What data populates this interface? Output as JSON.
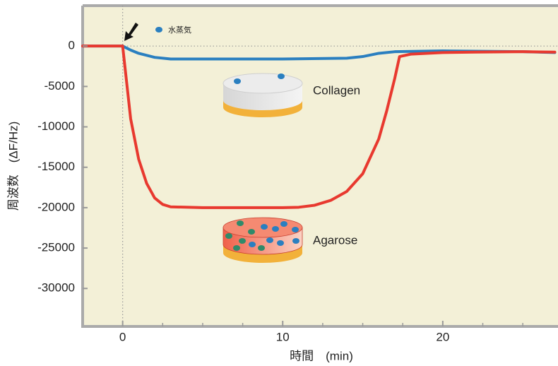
{
  "chart_data": {
    "type": "line",
    "x_label": "時間　(min)",
    "y_label": "周波数　(ΔF/Hz)",
    "annotation": "水蒸気",
    "xlim": [
      -2.5,
      27.2
    ],
    "ylim": [
      -34700,
      5000
    ],
    "xticks": [
      0,
      10,
      20
    ],
    "xminor_ticks": [
      2.5,
      5,
      7.5,
      12.5,
      15,
      17.5,
      22.5,
      25
    ],
    "yticks": [
      0,
      -5000,
      -10000,
      -15000,
      -20000,
      -25000,
      -30000
    ],
    "series": [
      {
        "name": "Collagen",
        "color": "#2a7fc0",
        "x": [
          -2.5,
          0,
          0.5,
          1,
          2,
          3,
          10,
          14,
          15,
          16,
          17,
          20,
          25,
          27
        ],
        "values": [
          0,
          0,
          -500,
          -900,
          -1400,
          -1600,
          -1600,
          -1500,
          -1300,
          -900,
          -700,
          -600,
          -700,
          -800
        ]
      },
      {
        "name": "Agarose",
        "color": "#e8392f",
        "x": [
          -2.5,
          0,
          0.5,
          1,
          1.5,
          2,
          2.5,
          3,
          5,
          10,
          11,
          12,
          13,
          14,
          15,
          16,
          16.5,
          17,
          17.3,
          18,
          20,
          22,
          25,
          27
        ],
        "values": [
          0,
          0,
          -9000,
          -14000,
          -17000,
          -18800,
          -19600,
          -19900,
          -20000,
          -20000,
          -19950,
          -19700,
          -19100,
          -18000,
          -15800,
          -11500,
          -8000,
          -4000,
          -1300,
          -1000,
          -800,
          -750,
          -700,
          -750
        ]
      }
    ]
  }
}
